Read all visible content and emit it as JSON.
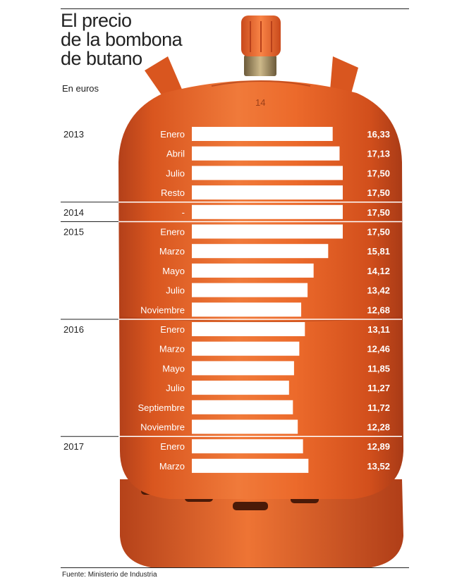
{
  "header": {
    "title_lines": [
      "El precio",
      "de la bombona",
      "de butano"
    ],
    "units": "En euros"
  },
  "footer": {
    "source": "Fuente: Ministerio de Industria"
  },
  "colors": {
    "cylinder": "#e8642a",
    "cylinder_dark": "#b8401a",
    "valve": "#f07036",
    "bars": "#ffffff",
    "text_dark": "#222222",
    "text_light": "#ffffff"
  },
  "chart_data": {
    "type": "bar",
    "orientation": "horizontal",
    "title": "El precio de la bombona de butano",
    "units": "En euros",
    "xlim": [
      0,
      17.5
    ],
    "grid": false,
    "groups": [
      {
        "year": "2013",
        "items": [
          {
            "label": "Enero",
            "value": 16.33,
            "value_label": "16,33"
          },
          {
            "label": "Abril",
            "value": 17.13,
            "value_label": "17,13"
          },
          {
            "label": "Julio",
            "value": 17.5,
            "value_label": "17,50"
          },
          {
            "label": "Resto",
            "value": 17.5,
            "value_label": "17,50"
          }
        ]
      },
      {
        "year": "2014",
        "items": [
          {
            "label": "-",
            "value": 17.5,
            "value_label": "17,50"
          }
        ]
      },
      {
        "year": "2015",
        "items": [
          {
            "label": "Enero",
            "value": 17.5,
            "value_label": "17,50"
          },
          {
            "label": "Marzo",
            "value": 15.81,
            "value_label": "15,81"
          },
          {
            "label": "Mayo",
            "value": 14.12,
            "value_label": "14,12"
          },
          {
            "label": "Julio",
            "value": 13.42,
            "value_label": "13,42"
          },
          {
            "label": "Noviembre",
            "value": 12.68,
            "value_label": "12,68"
          }
        ]
      },
      {
        "year": "2016",
        "items": [
          {
            "label": "Enero",
            "value": 13.11,
            "value_label": "13,11"
          },
          {
            "label": "Marzo",
            "value": 12.46,
            "value_label": "12,46"
          },
          {
            "label": "Mayo",
            "value": 11.85,
            "value_label": "11,85"
          },
          {
            "label": "Julio",
            "value": 11.27,
            "value_label": "11,27"
          },
          {
            "label": "Septiembre",
            "value": 11.72,
            "value_label": "11,72"
          },
          {
            "label": "Noviembre",
            "value": 12.28,
            "value_label": "12,28"
          }
        ]
      },
      {
        "year": "2017",
        "items": [
          {
            "label": "Enero",
            "value": 12.89,
            "value_label": "12,89"
          },
          {
            "label": "Marzo",
            "value": 13.52,
            "value_label": "13,52"
          }
        ]
      }
    ]
  }
}
